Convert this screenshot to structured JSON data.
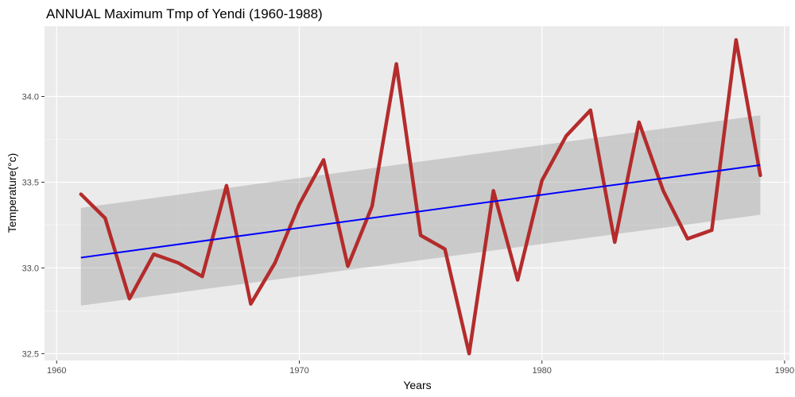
{
  "chart_data": {
    "type": "line",
    "title": "ANNUAL Maximum Tmp of Yendi (1960-1988)",
    "xlabel": "Years",
    "ylabel": "Temperature(°c)",
    "xlim": [
      1959.5,
      1990.2
    ],
    "ylim": [
      32.46,
      34.41
    ],
    "x_ticks": [
      1960,
      1970,
      1980,
      1990
    ],
    "y_ticks": [
      32.5,
      33.0,
      33.5,
      34.0
    ],
    "y_tick_labels": [
      "32.5",
      "33.0",
      "33.5",
      "34.0"
    ],
    "grid": true,
    "background": "#ebebeb",
    "series": [
      {
        "color": "#b22222",
        "x": [
          1961,
          1962,
          1963,
          1964,
          1965,
          1966,
          1967,
          1968,
          1969,
          1970,
          1971,
          1972,
          1973,
          1974,
          1975,
          1976,
          1977,
          1978,
          1979,
          1980,
          1981,
          1982,
          1983,
          1984,
          1985,
          1986,
          1987,
          1988,
          1989
        ],
        "y": [
          33.43,
          33.29,
          32.82,
          33.08,
          33.03,
          32.95,
          33.48,
          32.79,
          33.03,
          33.37,
          33.63,
          33.01,
          33.36,
          34.19,
          33.19,
          33.11,
          32.5,
          33.45,
          32.93,
          33.51,
          33.77,
          33.92,
          33.15,
          33.85,
          33.45,
          33.17,
          33.22,
          34.33,
          33.54
        ]
      }
    ],
    "trend": {
      "type": "linear",
      "color": "#0000ff",
      "x": [
        1961,
        1989
      ],
      "y": [
        33.06,
        33.6
      ],
      "ci_lower": [
        32.78,
        33.31
      ],
      "ci_upper": [
        33.35,
        33.89
      ],
      "ci_color": "#999999"
    }
  }
}
